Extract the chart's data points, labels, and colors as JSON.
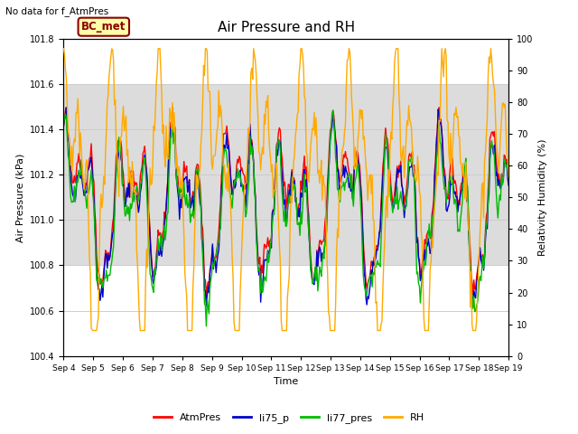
{
  "title": "Air Pressure and RH",
  "top_left_text": "No data for f_AtmPres",
  "station_label": "BC_met",
  "ylabel_left": "Air Pressure (kPa)",
  "ylabel_right": "Relativity Humidity (%)",
  "xlabel": "Time",
  "ylim_left": [
    100.4,
    101.8
  ],
  "ylim_right": [
    0,
    100
  ],
  "yticks_left": [
    100.4,
    100.6,
    100.8,
    101.0,
    101.2,
    101.4,
    101.6,
    101.8
  ],
  "yticks_right": [
    0,
    10,
    20,
    30,
    40,
    50,
    60,
    70,
    80,
    90,
    100
  ],
  "x_tick_labels": [
    "Sep 4",
    "Sep 5",
    "Sep 6",
    "Sep 7",
    "Sep 8",
    "Sep 9",
    "Sep 10",
    "Sep 11",
    "Sep 12",
    "Sep 13",
    "Sep 14",
    "Sep 15",
    "Sep 16",
    "Sep 17",
    "Sep 18",
    "Sep 19"
  ],
  "colors": {
    "AtmPres": "#ff0000",
    "li75_p": "#0000cc",
    "li77_pres": "#00bb00",
    "RH": "#ffaa00"
  },
  "bg_band_ylim": [
    100.8,
    101.6
  ],
  "bg_color": "#dcdcdc",
  "grid_color": "#cccccc",
  "n_points": 500,
  "seed": 42
}
